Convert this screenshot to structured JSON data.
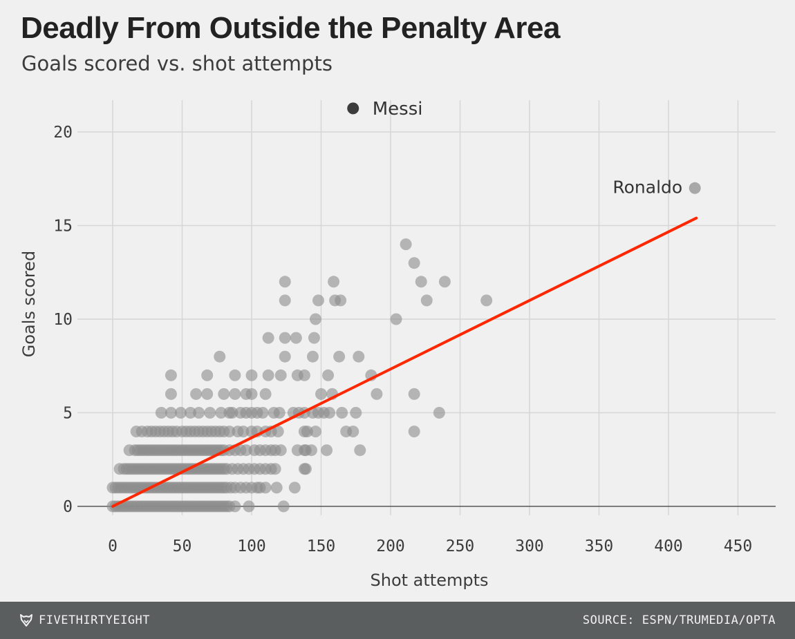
{
  "header": {
    "title": "Deadly From Outside the Penalty Area",
    "subtitle": "Goals scored vs. shot attempts"
  },
  "footer": {
    "brand": "FIVETHIRTYEIGHT",
    "brand_icon": "fivethirtyeight-fox-icon",
    "source": "SOURCE: ESPN/TRUMEDIA/OPTA"
  },
  "colors": {
    "background": "#f0f0f0",
    "grid": "#d6d6d6",
    "points": "#8c8c8c",
    "highlight_messi": "#3c3c3c",
    "highlight_ronaldo": "#a8a8a8",
    "trend": "#ff2700",
    "footer": "#5b5e5f"
  },
  "chart_data": {
    "type": "scatter",
    "title": "Deadly From Outside the Penalty Area",
    "subtitle": "Goals scored vs. shot attempts",
    "xlabel": "Shot attempts",
    "ylabel": "Goals scored",
    "xlim": [
      -10,
      475
    ],
    "ylim": [
      -0.5,
      21.5
    ],
    "xticks": [
      0,
      50,
      100,
      150,
      200,
      250,
      300,
      350,
      400,
      450
    ],
    "yticks": [
      0,
      5,
      10,
      15,
      20
    ],
    "grid": true,
    "trendline": {
      "x": [
        0,
        420
      ],
      "y": [
        0,
        15.4
      ]
    },
    "annotations": [
      {
        "label": "Messi",
        "x": 173,
        "y": 21
      },
      {
        "label": "Ronaldo",
        "x": 419,
        "y": 17
      }
    ],
    "points": [
      [
        0,
        0
      ],
      [
        2,
        0
      ],
      [
        4,
        0
      ],
      [
        6,
        0
      ],
      [
        8,
        0
      ],
      [
        10,
        0
      ],
      [
        12,
        0
      ],
      [
        14,
        0
      ],
      [
        16,
        0
      ],
      [
        18,
        0
      ],
      [
        20,
        0
      ],
      [
        22,
        0
      ],
      [
        24,
        0
      ],
      [
        26,
        0
      ],
      [
        28,
        0
      ],
      [
        30,
        0
      ],
      [
        32,
        0
      ],
      [
        34,
        0
      ],
      [
        36,
        0
      ],
      [
        38,
        0
      ],
      [
        40,
        0
      ],
      [
        42,
        0
      ],
      [
        44,
        0
      ],
      [
        46,
        0
      ],
      [
        48,
        0
      ],
      [
        50,
        0
      ],
      [
        52,
        0
      ],
      [
        54,
        0
      ],
      [
        56,
        0
      ],
      [
        58,
        0
      ],
      [
        60,
        0
      ],
      [
        62,
        0
      ],
      [
        64,
        0
      ],
      [
        66,
        0
      ],
      [
        68,
        0
      ],
      [
        70,
        0
      ],
      [
        72,
        0
      ],
      [
        74,
        0
      ],
      [
        76,
        0
      ],
      [
        78,
        0
      ],
      [
        80,
        0
      ],
      [
        82,
        0
      ],
      [
        84,
        0
      ],
      [
        88,
        0
      ],
      [
        98,
        0
      ],
      [
        123,
        0
      ],
      [
        0,
        1
      ],
      [
        2,
        1
      ],
      [
        4,
        1
      ],
      [
        6,
        1
      ],
      [
        8,
        1
      ],
      [
        10,
        1
      ],
      [
        12,
        1
      ],
      [
        14,
        1
      ],
      [
        16,
        1
      ],
      [
        18,
        1
      ],
      [
        20,
        1
      ],
      [
        22,
        1
      ],
      [
        24,
        1
      ],
      [
        26,
        1
      ],
      [
        28,
        1
      ],
      [
        30,
        1
      ],
      [
        32,
        1
      ],
      [
        34,
        1
      ],
      [
        36,
        1
      ],
      [
        38,
        1
      ],
      [
        40,
        1
      ],
      [
        42,
        1
      ],
      [
        44,
        1
      ],
      [
        46,
        1
      ],
      [
        48,
        1
      ],
      [
        50,
        1
      ],
      [
        52,
        1
      ],
      [
        54,
        1
      ],
      [
        56,
        1
      ],
      [
        58,
        1
      ],
      [
        60,
        1
      ],
      [
        62,
        1
      ],
      [
        64,
        1
      ],
      [
        66,
        1
      ],
      [
        68,
        1
      ],
      [
        70,
        1
      ],
      [
        72,
        1
      ],
      [
        74,
        1
      ],
      [
        76,
        1
      ],
      [
        78,
        1
      ],
      [
        80,
        1
      ],
      [
        82,
        1
      ],
      [
        85,
        1
      ],
      [
        88,
        1
      ],
      [
        92,
        1
      ],
      [
        96,
        1
      ],
      [
        100,
        1
      ],
      [
        104,
        1
      ],
      [
        106,
        1
      ],
      [
        110,
        1
      ],
      [
        118,
        1
      ],
      [
        131,
        1
      ],
      [
        5,
        2
      ],
      [
        8,
        2
      ],
      [
        10,
        2
      ],
      [
        12,
        2
      ],
      [
        14,
        2
      ],
      [
        16,
        2
      ],
      [
        18,
        2
      ],
      [
        20,
        2
      ],
      [
        22,
        2
      ],
      [
        24,
        2
      ],
      [
        26,
        2
      ],
      [
        28,
        2
      ],
      [
        30,
        2
      ],
      [
        32,
        2
      ],
      [
        34,
        2
      ],
      [
        36,
        2
      ],
      [
        38,
        2
      ],
      [
        40,
        2
      ],
      [
        42,
        2
      ],
      [
        44,
        2
      ],
      [
        46,
        2
      ],
      [
        48,
        2
      ],
      [
        50,
        2
      ],
      [
        52,
        2
      ],
      [
        54,
        2
      ],
      [
        56,
        2
      ],
      [
        58,
        2
      ],
      [
        60,
        2
      ],
      [
        62,
        2
      ],
      [
        64,
        2
      ],
      [
        66,
        2
      ],
      [
        68,
        2
      ],
      [
        70,
        2
      ],
      [
        72,
        2
      ],
      [
        74,
        2
      ],
      [
        76,
        2
      ],
      [
        78,
        2
      ],
      [
        80,
        2
      ],
      [
        82,
        2
      ],
      [
        86,
        2
      ],
      [
        90,
        2
      ],
      [
        94,
        2
      ],
      [
        98,
        2
      ],
      [
        102,
        2
      ],
      [
        106,
        2
      ],
      [
        110,
        2
      ],
      [
        114,
        2
      ],
      [
        117,
        2
      ],
      [
        138,
        2
      ],
      [
        139,
        2
      ],
      [
        12,
        3
      ],
      [
        16,
        3
      ],
      [
        18,
        3
      ],
      [
        20,
        3
      ],
      [
        22,
        3
      ],
      [
        24,
        3
      ],
      [
        26,
        3
      ],
      [
        28,
        3
      ],
      [
        30,
        3
      ],
      [
        32,
        3
      ],
      [
        34,
        3
      ],
      [
        36,
        3
      ],
      [
        38,
        3
      ],
      [
        40,
        3
      ],
      [
        42,
        3
      ],
      [
        44,
        3
      ],
      [
        46,
        3
      ],
      [
        48,
        3
      ],
      [
        50,
        3
      ],
      [
        52,
        3
      ],
      [
        54,
        3
      ],
      [
        56,
        3
      ],
      [
        58,
        3
      ],
      [
        60,
        3
      ],
      [
        62,
        3
      ],
      [
        64,
        3
      ],
      [
        66,
        3
      ],
      [
        68,
        3
      ],
      [
        70,
        3
      ],
      [
        72,
        3
      ],
      [
        74,
        3
      ],
      [
        76,
        3
      ],
      [
        78,
        3
      ],
      [
        80,
        3
      ],
      [
        84,
        3
      ],
      [
        88,
        3
      ],
      [
        92,
        3
      ],
      [
        96,
        3
      ],
      [
        102,
        3
      ],
      [
        106,
        3
      ],
      [
        110,
        3
      ],
      [
        114,
        3
      ],
      [
        117,
        3
      ],
      [
        121,
        3
      ],
      [
        133,
        3
      ],
      [
        138,
        3
      ],
      [
        139,
        3
      ],
      [
        143,
        3
      ],
      [
        154,
        3
      ],
      [
        178,
        3
      ],
      [
        17,
        4
      ],
      [
        21,
        4
      ],
      [
        25,
        4
      ],
      [
        28,
        4
      ],
      [
        31,
        4
      ],
      [
        34,
        4
      ],
      [
        37,
        4
      ],
      [
        40,
        4
      ],
      [
        43,
        4
      ],
      [
        46,
        4
      ],
      [
        50,
        4
      ],
      [
        53,
        4
      ],
      [
        56,
        4
      ],
      [
        59,
        4
      ],
      [
        62,
        4
      ],
      [
        65,
        4
      ],
      [
        68,
        4
      ],
      [
        71,
        4
      ],
      [
        74,
        4
      ],
      [
        77,
        4
      ],
      [
        80,
        4
      ],
      [
        84,
        4
      ],
      [
        90,
        4
      ],
      [
        94,
        4
      ],
      [
        100,
        4
      ],
      [
        104,
        4
      ],
      [
        110,
        4
      ],
      [
        114,
        4
      ],
      [
        119,
        4
      ],
      [
        138,
        4
      ],
      [
        140,
        4
      ],
      [
        146,
        4
      ],
      [
        168,
        4
      ],
      [
        173,
        4
      ],
      [
        217,
        4
      ],
      [
        35,
        5
      ],
      [
        42,
        5
      ],
      [
        49,
        5
      ],
      [
        56,
        5
      ],
      [
        62,
        5
      ],
      [
        70,
        5
      ],
      [
        78,
        5
      ],
      [
        84,
        5
      ],
      [
        86,
        5
      ],
      [
        92,
        5
      ],
      [
        96,
        5
      ],
      [
        100,
        5
      ],
      [
        104,
        5
      ],
      [
        108,
        5
      ],
      [
        116,
        5
      ],
      [
        120,
        5
      ],
      [
        130,
        5
      ],
      [
        134,
        5
      ],
      [
        138,
        5
      ],
      [
        144,
        5
      ],
      [
        148,
        5
      ],
      [
        152,
        5
      ],
      [
        156,
        5
      ],
      [
        165,
        5
      ],
      [
        175,
        5
      ],
      [
        235,
        5
      ],
      [
        42,
        6
      ],
      [
        60,
        6
      ],
      [
        68,
        6
      ],
      [
        80,
        6
      ],
      [
        88,
        6
      ],
      [
        96,
        6
      ],
      [
        100,
        6
      ],
      [
        110,
        6
      ],
      [
        150,
        6
      ],
      [
        158,
        6
      ],
      [
        190,
        6
      ],
      [
        217,
        6
      ],
      [
        42,
        7
      ],
      [
        68,
        7
      ],
      [
        88,
        7
      ],
      [
        100,
        7
      ],
      [
        112,
        7
      ],
      [
        121,
        7
      ],
      [
        133,
        7
      ],
      [
        138,
        7
      ],
      [
        155,
        7
      ],
      [
        186,
        7
      ],
      [
        77,
        8
      ],
      [
        124,
        8
      ],
      [
        144,
        8
      ],
      [
        163,
        8
      ],
      [
        177,
        8
      ],
      [
        112,
        9
      ],
      [
        124,
        9
      ],
      [
        132,
        9
      ],
      [
        145,
        9
      ],
      [
        146,
        10
      ],
      [
        204,
        10
      ],
      [
        124,
        11
      ],
      [
        148,
        11
      ],
      [
        160,
        11
      ],
      [
        164,
        11
      ],
      [
        226,
        11
      ],
      [
        269,
        11
      ],
      [
        124,
        12
      ],
      [
        159,
        12
      ],
      [
        222,
        12
      ],
      [
        239,
        12
      ],
      [
        217,
        13
      ],
      [
        211,
        14
      ]
    ]
  }
}
